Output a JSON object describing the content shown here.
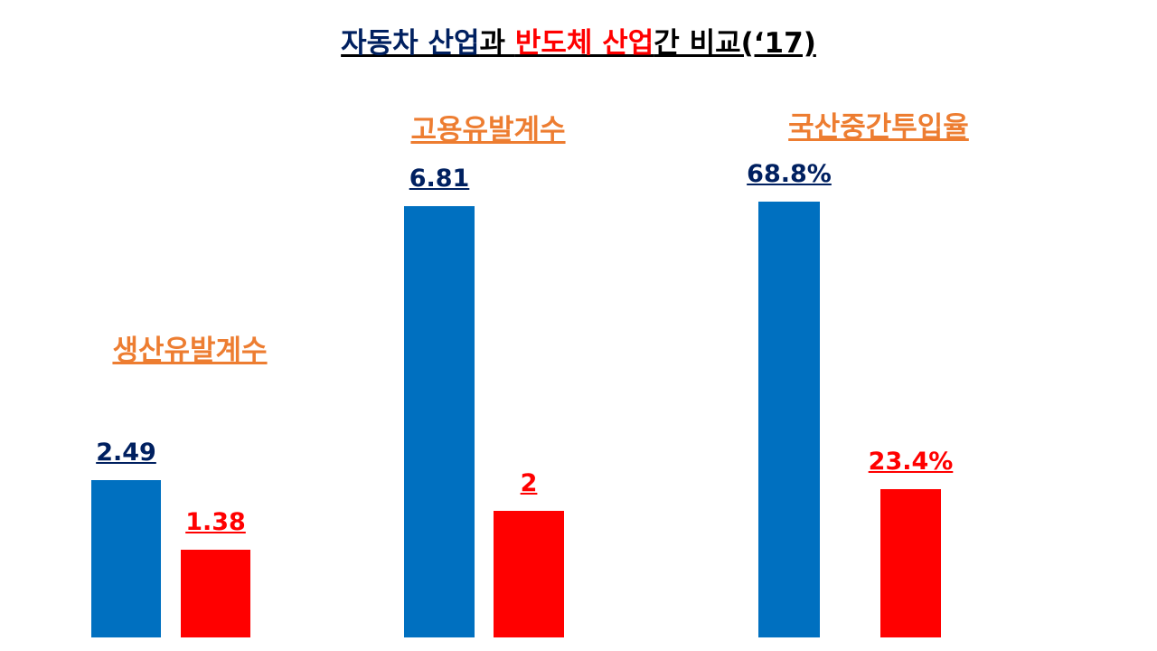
{
  "title": {
    "parts": [
      "자동차 산업",
      "과 ",
      "반도체 산업",
      "간 비교(‘17)"
    ],
    "colors": [
      "#002060",
      "#000000",
      "#ff0000",
      "#000000"
    ]
  },
  "chart_data": [
    {
      "type": "bar",
      "title": "생산유발계수",
      "series": [
        {
          "color": "#0070c0",
          "label_color": "#002060",
          "values": [
            2.49
          ]
        },
        {
          "color": "#ff0000",
          "label_color": "#ff0000",
          "values": [
            1.38
          ]
        }
      ]
    },
    {
      "type": "bar",
      "title": "고용유발계수",
      "series": [
        {
          "color": "#0070c0",
          "label_color": "#002060",
          "values": [
            6.81
          ]
        },
        {
          "color": "#ff0000",
          "label_color": "#ff0000",
          "values": [
            2
          ]
        }
      ]
    },
    {
      "type": "bar",
      "title": "국산중간투입율",
      "series": [
        {
          "color": "#0070c0",
          "label_color": "#002060",
          "values": [
            68.8
          ],
          "value_labels": [
            "68.8%"
          ]
        },
        {
          "color": "#ff0000",
          "label_color": "#ff0000",
          "values": [
            23.4
          ],
          "value_labels": [
            "23.4%"
          ]
        }
      ]
    }
  ]
}
